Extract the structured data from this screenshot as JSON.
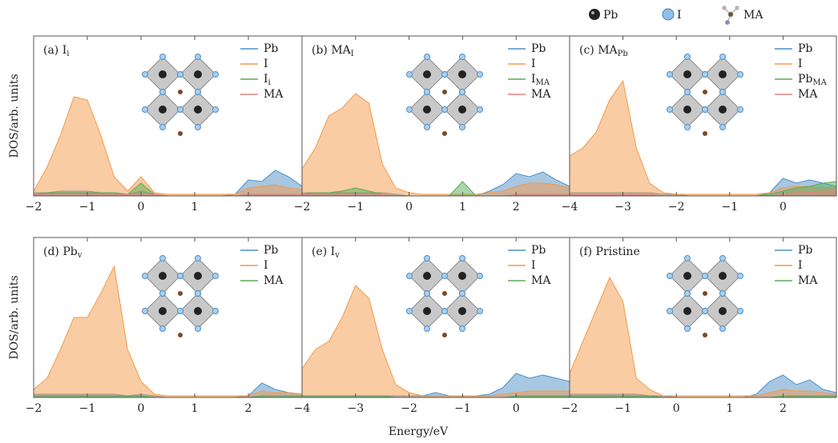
{
  "figure": {
    "legend": [
      "Pb",
      "I",
      "MA"
    ],
    "xlabel": "Energy/eV",
    "ylabel": "DOS/arb. units"
  },
  "chart_data": [
    {
      "type": "area",
      "label": "(a) I",
      "label_sub": "i",
      "xlim": [
        -2,
        3
      ],
      "ylim": [
        0,
        1
      ],
      "xticks": [
        {
          "value": -2,
          "label": "−2"
        },
        {
          "value": -1,
          "label": "−1"
        },
        0,
        1,
        2
      ],
      "x": [
        -2,
        -1.75,
        -1.5,
        -1.25,
        -1,
        -0.75,
        -0.5,
        -0.25,
        0,
        0.25,
        0.5,
        0.75,
        1,
        1.25,
        1.5,
        1.75,
        2,
        2.25,
        2.5,
        2.75,
        3
      ],
      "series": [
        {
          "name": "Pb",
          "color": "#4f8fc6",
          "values": [
            0.02,
            0.02,
            0.03,
            0.03,
            0.03,
            0.02,
            0.02,
            0.01,
            0.03,
            0.01,
            0,
            0,
            0,
            0,
            0,
            0.01,
            0.1,
            0.09,
            0.16,
            0.12,
            0.06
          ]
        },
        {
          "name": "I",
          "color": "#f39a4a",
          "values": [
            0.03,
            0.18,
            0.38,
            0.62,
            0.6,
            0.38,
            0.12,
            0.03,
            0.12,
            0.02,
            0.01,
            0.01,
            0.01,
            0.01,
            0.01,
            0.01,
            0.05,
            0.06,
            0.07,
            0.05,
            0.04
          ]
        },
        {
          "name": "I",
          "name_sub": "i",
          "color": "#5aab5a",
          "values": [
            0.01,
            0.02,
            0.02,
            0.02,
            0.02,
            0.02,
            0.02,
            0.01,
            0.08,
            0.01,
            0,
            0,
            0,
            0,
            0,
            0,
            0.01,
            0.01,
            0.01,
            0.01,
            0.01
          ]
        },
        {
          "name": "MA",
          "color": "#e88080",
          "values": [
            0.01,
            0.01,
            0.01,
            0.01,
            0.01,
            0.01,
            0.01,
            0.01,
            0.01,
            0.01,
            0,
            0,
            0,
            0,
            0,
            0,
            0.01,
            0.01,
            0.01,
            0.01,
            0.01
          ]
        }
      ]
    },
    {
      "type": "area",
      "label": "(b) MA",
      "label_sub": "I",
      "xlim": [
        -2,
        3
      ],
      "ylim": [
        0,
        1
      ],
      "xticks": [
        {
          "value": -2,
          "label": "−2"
        },
        {
          "value": -1,
          "label": "−1"
        },
        0,
        1,
        2
      ],
      "x": [
        -2,
        -1.75,
        -1.5,
        -1.25,
        -1,
        -0.75,
        -0.5,
        -0.25,
        0,
        0.25,
        0.5,
        0.75,
        1,
        1.25,
        1.5,
        1.75,
        2,
        2.25,
        2.5,
        2.75,
        3
      ],
      "series": [
        {
          "name": "Pb",
          "color": "#4f8fc6",
          "values": [
            0.02,
            0.02,
            0.02,
            0.02,
            0.02,
            0.02,
            0.02,
            0.01,
            0,
            0,
            0,
            0,
            0,
            0,
            0.03,
            0.07,
            0.14,
            0.12,
            0.15,
            0.1,
            0.06
          ]
        },
        {
          "name": "I",
          "color": "#f39a4a",
          "values": [
            0.17,
            0.3,
            0.5,
            0.55,
            0.64,
            0.58,
            0.2,
            0.05,
            0.02,
            0.01,
            0.01,
            0.01,
            0.01,
            0.01,
            0.02,
            0.03,
            0.06,
            0.08,
            0.08,
            0.07,
            0.05
          ]
        },
        {
          "name": "I",
          "name_sub": "MA",
          "color": "#5aab5a",
          "values": [
            0.01,
            0.02,
            0.02,
            0.03,
            0.05,
            0.03,
            0.01,
            0,
            0,
            0,
            0,
            0,
            0.09,
            0,
            0,
            0,
            0.01,
            0.01,
            0.01,
            0.01,
            0.01
          ]
        },
        {
          "name": "MA",
          "color": "#e88080",
          "values": [
            0.01,
            0.01,
            0.01,
            0.01,
            0.01,
            0.01,
            0.01,
            0,
            0,
            0,
            0,
            0,
            0,
            0,
            0,
            0,
            0.01,
            0.01,
            0.01,
            0.01,
            0.01
          ]
        }
      ]
    },
    {
      "type": "area",
      "label": "(c) MA",
      "label_sub": "Pb",
      "xlim": [
        -4,
        1
      ],
      "ylim": [
        0,
        1
      ],
      "xticks": [
        {
          "value": -4,
          "label": "−4"
        },
        {
          "value": -3,
          "label": "−3"
        },
        {
          "value": -2,
          "label": "−2"
        },
        {
          "value": -1,
          "label": "−1"
        },
        0
      ],
      "x": [
        -4,
        -3.75,
        -3.5,
        -3.25,
        -3,
        -2.75,
        -2.5,
        -2.25,
        -2,
        -1.75,
        -1.5,
        -1.25,
        -1,
        -0.75,
        -0.5,
        -0.25,
        0,
        0.25,
        0.5,
        0.75,
        1
      ],
      "series": [
        {
          "name": "Pb",
          "color": "#4f8fc6",
          "values": [
            0.02,
            0.02,
            0.02,
            0.02,
            0.02,
            0.02,
            0.02,
            0.01,
            0.01,
            0,
            0,
            0,
            0,
            0,
            0,
            0.02,
            0.11,
            0.08,
            0.1,
            0.08,
            0.06
          ]
        },
        {
          "name": "I",
          "color": "#f39a4a",
          "values": [
            0.25,
            0.3,
            0.4,
            0.6,
            0.72,
            0.3,
            0.08,
            0.02,
            0.01,
            0.01,
            0.01,
            0.01,
            0.01,
            0.01,
            0.01,
            0.02,
            0.05,
            0.06,
            0.06,
            0.05,
            0.05
          ]
        },
        {
          "name": "Pb",
          "name_sub": "MA",
          "color": "#5aab5a",
          "values": [
            0.01,
            0.01,
            0.01,
            0.01,
            0.01,
            0.01,
            0.01,
            0,
            0,
            0,
            0,
            0,
            0,
            0,
            0,
            0.01,
            0.03,
            0.05,
            0.06,
            0.08,
            0.09
          ]
        },
        {
          "name": "MA",
          "color": "#e88080",
          "values": [
            0.01,
            0.01,
            0.01,
            0.01,
            0.01,
            0.01,
            0.01,
            0,
            0,
            0,
            0,
            0,
            0,
            0,
            0,
            0,
            0.01,
            0.02,
            0.02,
            0.03,
            0.03
          ]
        }
      ]
    },
    {
      "type": "area",
      "label": "(d) Pb",
      "label_sub": "v",
      "xlim": [
        -2,
        3
      ],
      "ylim": [
        0,
        1
      ],
      "xticks": [
        {
          "value": -2,
          "label": "−2"
        },
        {
          "value": -1,
          "label": "−1"
        },
        0,
        1,
        2
      ],
      "x": [
        -2,
        -1.75,
        -1.5,
        -1.25,
        -1,
        -0.75,
        -0.5,
        -0.25,
        0,
        0.25,
        0.5,
        0.75,
        1,
        1.25,
        1.5,
        1.75,
        2,
        2.25,
        2.5,
        2.75,
        3
      ],
      "series": [
        {
          "name": "Pb",
          "color": "#4f8fc6",
          "values": [
            0.02,
            0.02,
            0.02,
            0.02,
            0.02,
            0.02,
            0.02,
            0.01,
            0.02,
            0.01,
            0,
            0,
            0,
            0,
            0,
            0,
            0.01,
            0.09,
            0.05,
            0.03,
            0.02
          ]
        },
        {
          "name": "I",
          "color": "#f39a4a",
          "values": [
            0.05,
            0.12,
            0.3,
            0.5,
            0.5,
            0.65,
            0.82,
            0.3,
            0.1,
            0.02,
            0.01,
            0.01,
            0.01,
            0.01,
            0.01,
            0.01,
            0.01,
            0.04,
            0.03,
            0.03,
            0.02
          ]
        },
        {
          "name": "MA",
          "color": "#5aab5a",
          "values": [
            0.01,
            0.01,
            0.01,
            0.01,
            0.01,
            0.01,
            0.01,
            0.01,
            0.01,
            0,
            0,
            0,
            0,
            0,
            0,
            0,
            0,
            0.01,
            0.01,
            0.01,
            0.01
          ]
        }
      ]
    },
    {
      "type": "area",
      "label": "(e) I",
      "label_sub": "v",
      "xlim": [
        -4,
        1
      ],
      "ylim": [
        0,
        1
      ],
      "xticks": [
        {
          "value": -4,
          "label": "−4"
        },
        {
          "value": -3,
          "label": "−3"
        },
        {
          "value": -2,
          "label": "−2"
        },
        {
          "value": -1,
          "label": "−1"
        },
        0
      ],
      "x": [
        -4,
        -3.75,
        -3.5,
        -3.25,
        -3,
        -2.75,
        -2.5,
        -2.25,
        -2,
        -1.75,
        -1.5,
        -1.25,
        -1,
        -0.75,
        -0.5,
        -0.25,
        0,
        0.25,
        0.5,
        0.75,
        1
      ],
      "series": [
        {
          "name": "Pb",
          "color": "#4f8fc6",
          "values": [
            0.01,
            0.01,
            0.01,
            0.01,
            0.01,
            0.01,
            0.01,
            0.01,
            0.01,
            0.01,
            0.03,
            0.01,
            0.01,
            0.01,
            0.02,
            0.06,
            0.15,
            0.12,
            0.14,
            0.12,
            0.1
          ]
        },
        {
          "name": "I",
          "color": "#f39a4a",
          "values": [
            0.18,
            0.3,
            0.35,
            0.5,
            0.7,
            0.62,
            0.3,
            0.08,
            0.03,
            0.01,
            0.01,
            0.01,
            0.01,
            0.01,
            0.01,
            0.02,
            0.03,
            0.04,
            0.04,
            0.04,
            0.04
          ]
        },
        {
          "name": "MA",
          "color": "#5aab5a",
          "values": [
            0.01,
            0.01,
            0.01,
            0.01,
            0.01,
            0.01,
            0.01,
            0,
            0,
            0,
            0,
            0,
            0,
            0,
            0,
            0,
            0.01,
            0.01,
            0.01,
            0.01,
            0.01
          ]
        }
      ]
    },
    {
      "type": "area",
      "label": "(f) Pristine",
      "xlim": [
        -2,
        3
      ],
      "ylim": [
        0,
        1
      ],
      "xticks": [
        {
          "value": -2,
          "label": "−2"
        },
        {
          "value": -1,
          "label": "−1"
        },
        0,
        1,
        2
      ],
      "x": [
        -2,
        -1.75,
        -1.5,
        -1.25,
        -1,
        -0.75,
        -0.5,
        -0.25,
        0,
        0.25,
        0.5,
        0.75,
        1,
        1.25,
        1.5,
        1.75,
        2,
        2.25,
        2.5,
        2.75,
        3
      ],
      "series": [
        {
          "name": "Pb",
          "color": "#4f8fc6",
          "values": [
            0.02,
            0.02,
            0.02,
            0.02,
            0.02,
            0.02,
            0.01,
            0.01,
            0,
            0,
            0,
            0,
            0,
            0,
            0.02,
            0.1,
            0.14,
            0.08,
            0.11,
            0.05,
            0.03
          ]
        },
        {
          "name": "I",
          "color": "#f39a4a",
          "values": [
            0.15,
            0.35,
            0.55,
            0.75,
            0.6,
            0.12,
            0.05,
            0.01,
            0.01,
            0.01,
            0.01,
            0.01,
            0.01,
            0.01,
            0.01,
            0.03,
            0.05,
            0.04,
            0.04,
            0.03,
            0.02
          ]
        },
        {
          "name": "MA",
          "color": "#5aab5a",
          "values": [
            0.01,
            0.01,
            0.01,
            0.01,
            0.01,
            0.01,
            0.01,
            0,
            0,
            0,
            0,
            0,
            0,
            0,
            0,
            0,
            0.01,
            0.01,
            0.01,
            0.01,
            0.01
          ]
        }
      ]
    }
  ]
}
